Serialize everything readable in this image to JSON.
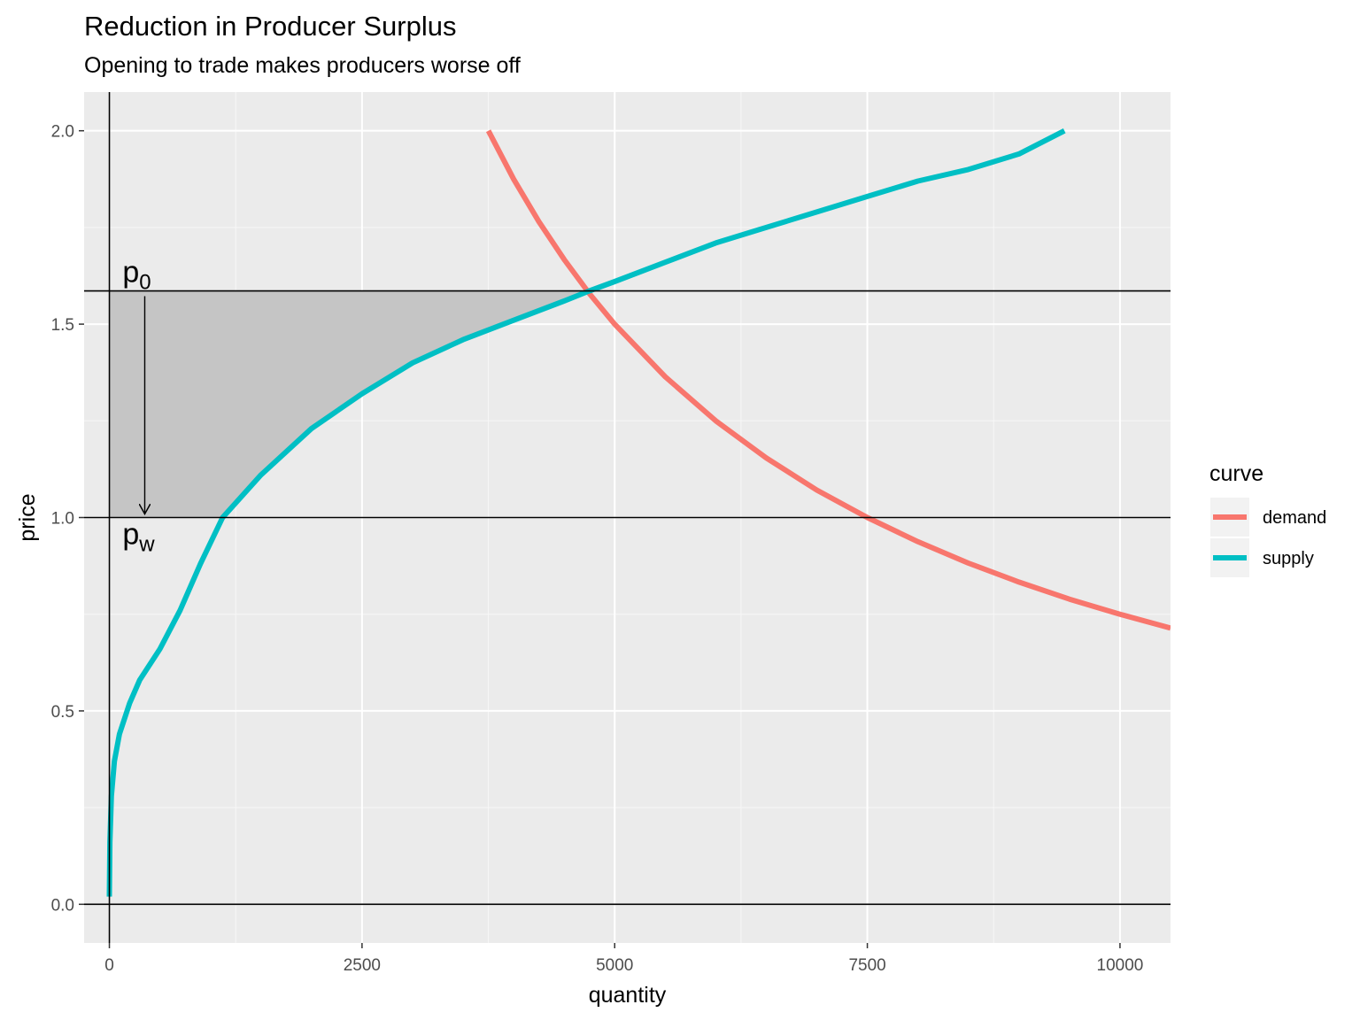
{
  "chart_data": {
    "type": "line",
    "title": "Reduction in Producer Surplus",
    "subtitle": "Opening to trade makes producers worse off",
    "xlabel": "quantity",
    "ylabel": "price",
    "xlim": [
      -250,
      10500
    ],
    "ylim": [
      -0.1,
      2.1
    ],
    "x_ticks": [
      0,
      2500,
      5000,
      7500,
      10000
    ],
    "x_tick_labels": [
      "0",
      "2500",
      "5000",
      "7500",
      "10000"
    ],
    "y_ticks": [
      0.0,
      0.5,
      1.0,
      1.5,
      2.0
    ],
    "y_tick_labels": [
      "0.0",
      "0.5",
      "1.0",
      "1.5",
      "2.0"
    ],
    "grid": true,
    "legend": {
      "title": "curve",
      "position": "right",
      "entries": [
        {
          "label": "demand",
          "color": "#F8766D"
        },
        {
          "label": "supply",
          "color": "#00BFC4"
        }
      ]
    },
    "series": [
      {
        "name": "demand",
        "color": "#F8766D",
        "x": [
          3750,
          4000,
          4250,
          4500,
          4750,
          5000,
          5500,
          6000,
          6500,
          7000,
          7500,
          8000,
          8500,
          9000,
          9500,
          10000,
          10500
        ],
        "y": [
          2.0,
          1.875,
          1.765,
          1.667,
          1.579,
          1.5,
          1.364,
          1.25,
          1.154,
          1.071,
          1.0,
          0.9375,
          0.882,
          0.833,
          0.789,
          0.75,
          0.714
        ]
      },
      {
        "name": "supply",
        "color": "#00BFC4",
        "x": [
          0,
          5,
          20,
          50,
          100,
          200,
          300,
          500,
          700,
          900,
          1120,
          1500,
          2000,
          2500,
          3000,
          3500,
          4000,
          4500,
          4750,
          5000,
          5500,
          6000,
          6500,
          7000,
          7500,
          8000,
          8500,
          9000,
          9450
        ],
        "y": [
          0.02,
          0.16,
          0.28,
          0.37,
          0.44,
          0.52,
          0.58,
          0.66,
          0.76,
          0.88,
          1.0,
          1.11,
          1.23,
          1.32,
          1.4,
          1.46,
          1.51,
          1.56,
          1.586,
          1.61,
          1.66,
          1.71,
          1.75,
          1.79,
          1.83,
          1.87,
          1.9,
          1.94,
          2.0
        ]
      }
    ],
    "reference_lines": {
      "horizontal": [
        0.0,
        1.0,
        1.586
      ],
      "vertical": [
        0
      ]
    },
    "shaded_area": {
      "label": "reduction in producer surplus",
      "color": "#c5c5c5",
      "between_prices": [
        1.0,
        1.586
      ],
      "left_boundary_quantity": 0,
      "right_boundary": "supply"
    },
    "annotations": [
      {
        "main": "p",
        "sub": "0",
        "x": 200,
        "y": 1.586
      },
      {
        "main": "p",
        "sub": "w",
        "x": 200,
        "y": 1.0
      }
    ],
    "arrow": {
      "from": [
        350,
        1.586
      ],
      "to": [
        350,
        1.0
      ]
    }
  }
}
